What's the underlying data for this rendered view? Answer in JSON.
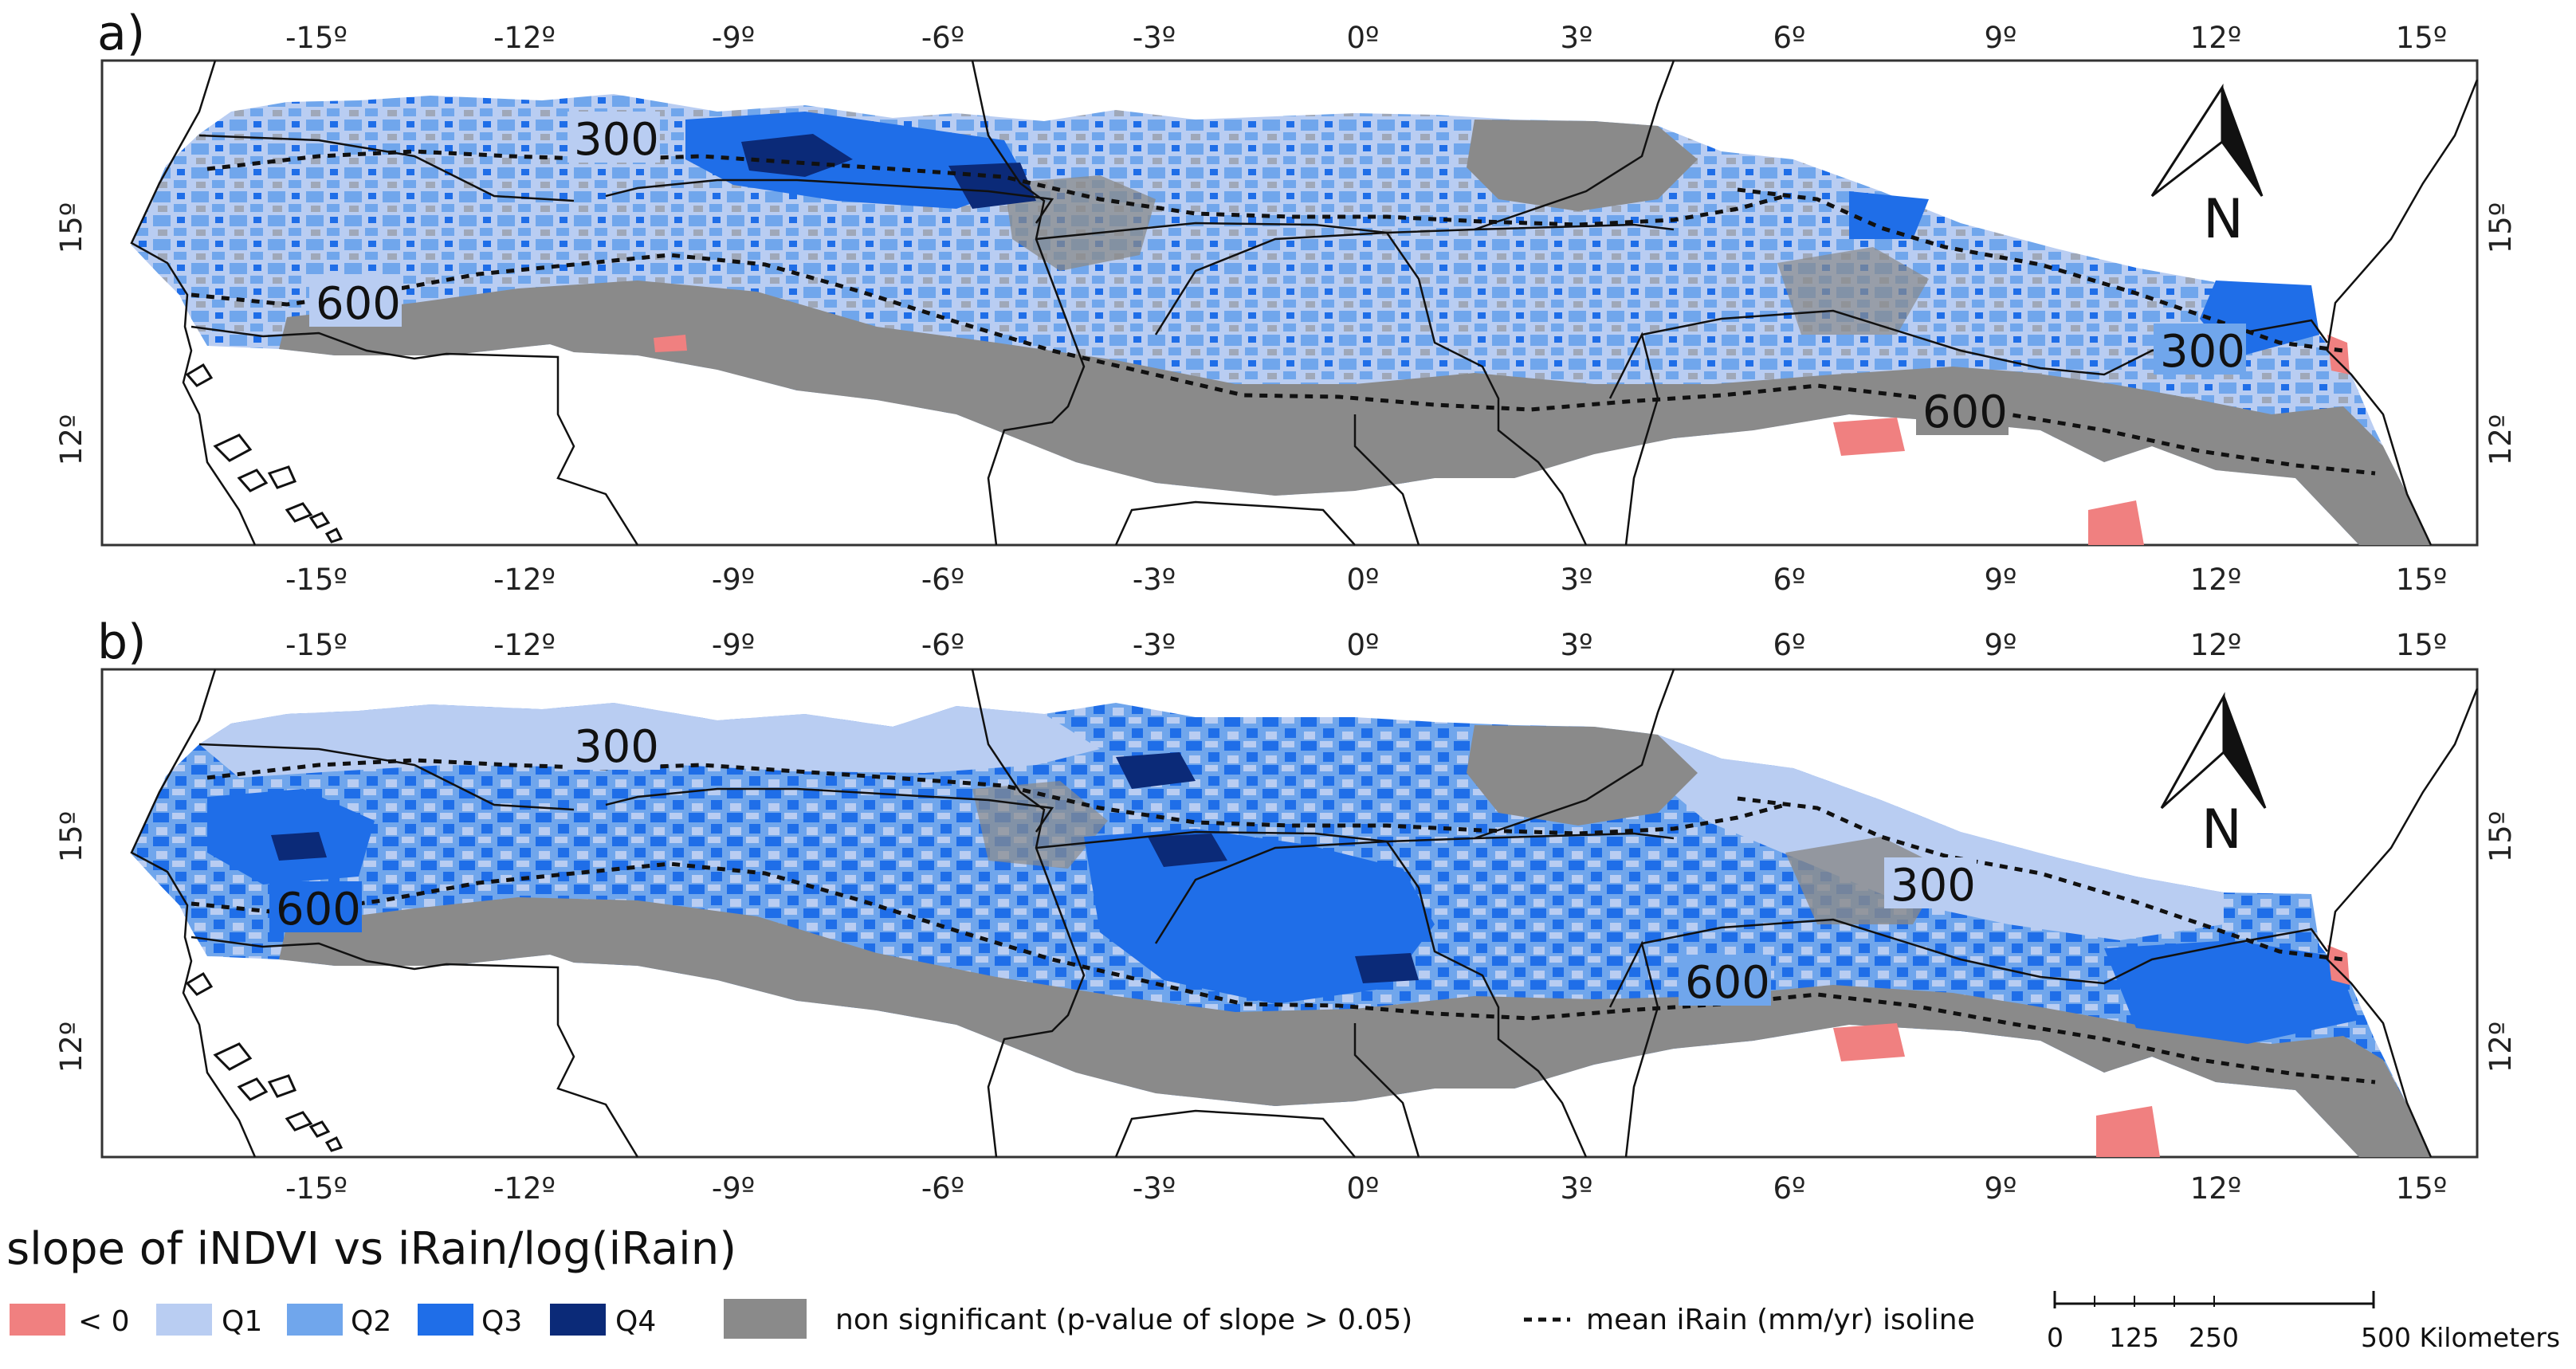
{
  "panels": [
    {
      "label": "a)",
      "isolines": [
        {
          "value": "300"
        },
        {
          "value": "600"
        },
        {
          "value": "300"
        },
        {
          "value": "600"
        }
      ],
      "north": "N"
    },
    {
      "label": "b)",
      "isolines": [
        {
          "value": "300"
        },
        {
          "value": "600"
        },
        {
          "value": "300"
        },
        {
          "value": "600"
        }
      ],
      "north": "N"
    }
  ],
  "axes": {
    "lon_ticks": [
      "-15º",
      "-12º",
      "-9º",
      "-6º",
      "-3º",
      "0º",
      "3º",
      "6º",
      "9º",
      "12º",
      "15º"
    ],
    "lat_ticks": [
      "15º",
      "12º"
    ]
  },
  "legend": {
    "title": "slope of iNDVI vs iRain/log(iRain)",
    "items": [
      {
        "label": "< 0",
        "color": "#f08080"
      },
      {
        "label": "Q1",
        "color": "#b9cdf2"
      },
      {
        "label": "Q2",
        "color": "#70a6ec"
      },
      {
        "label": "Q3",
        "color": "#1f6ee8"
      },
      {
        "label": "Q4",
        "color": "#0b2a78"
      }
    ],
    "nonsig": {
      "label": "non significant (p-value of slope > 0.05)",
      "color": "#8a8a8a"
    },
    "isoline": {
      "label": "mean iRain (mm/yr) isoline"
    }
  },
  "scale_bar": {
    "ticks": [
      "0",
      "125",
      "250",
      "500 Kilometers"
    ]
  }
}
